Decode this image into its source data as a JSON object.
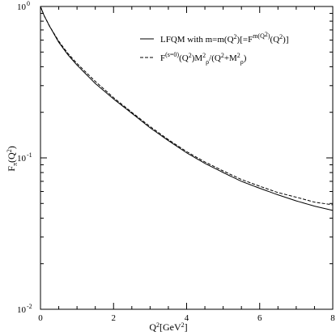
{
  "chart_data": {
    "type": "line",
    "xlabel": "Q²[GeV²]",
    "ylabel": "Fπ(Q²)",
    "xlim": [
      0,
      8
    ],
    "ylim": [
      0.01,
      1
    ],
    "yscale": "log",
    "grid": false,
    "legend_position": "top-right",
    "x_ticks": [
      0,
      2,
      4,
      6,
      8
    ],
    "y_ticks": [
      0.01,
      0.1,
      1
    ],
    "x_tick_labels": [
      "0",
      "2",
      "4",
      "6",
      "8"
    ],
    "y_tick_labels": [
      "10",
      "10",
      "10"
    ],
    "y_tick_exponents": [
      "-2",
      "-1",
      "0"
    ],
    "series": [
      {
        "name": "LFQM with m=m(Q²)[=F^m(Q²)(Q²)]",
        "style": "solid",
        "x": [
          0,
          0.1,
          0.25,
          0.5,
          0.75,
          1,
          1.5,
          2,
          2.5,
          3,
          3.5,
          4,
          4.5,
          5,
          5.5,
          6,
          6.5,
          7,
          7.5,
          8
        ],
        "y": [
          1.0,
          0.87,
          0.74,
          0.58,
          0.48,
          0.41,
          0.31,
          0.245,
          0.197,
          0.158,
          0.13,
          0.108,
          0.092,
          0.08,
          0.07,
          0.063,
          0.057,
          0.052,
          0.048,
          0.045
        ]
      },
      {
        "name": "F^(s=0)(Q²)M²ρ/(Q²+M²ρ)",
        "style": "dashed",
        "x": [
          0,
          0.1,
          0.25,
          0.5,
          0.75,
          1,
          1.5,
          2,
          2.5,
          3,
          3.5,
          4,
          4.5,
          5,
          5.5,
          6,
          6.5,
          7,
          7.5,
          8
        ],
        "y": [
          1.0,
          0.87,
          0.74,
          0.59,
          0.49,
          0.42,
          0.32,
          0.25,
          0.2,
          0.161,
          0.132,
          0.11,
          0.094,
          0.082,
          0.072,
          0.065,
          0.059,
          0.055,
          0.051,
          0.049
        ]
      }
    ]
  }
}
